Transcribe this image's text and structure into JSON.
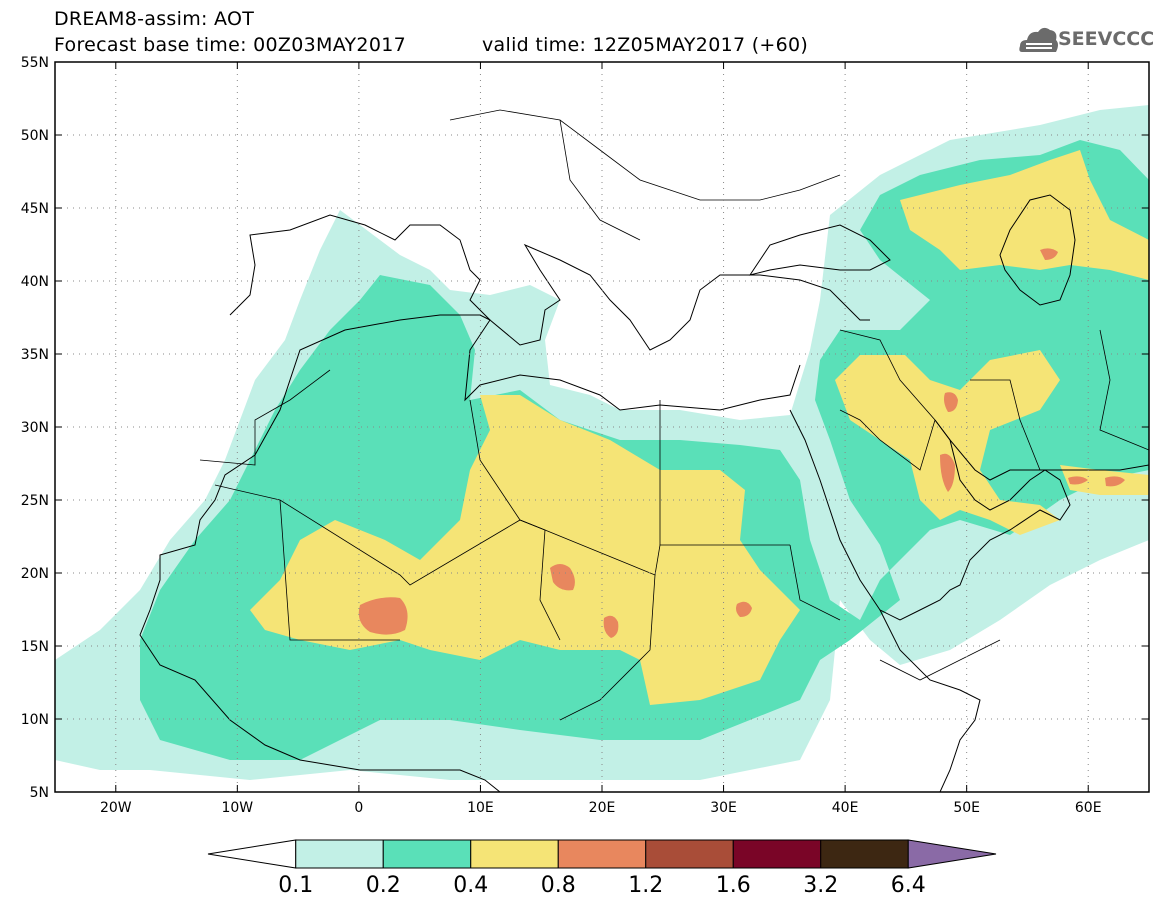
{
  "header": {
    "line1": "DREAM8-assim: AOT",
    "line2": "Forecast base time: 00Z03MAY2017",
    "valid": "valid time: 12Z05MAY2017 (+60)",
    "logo_text": "SEEVCCC"
  },
  "map": {
    "lon_range": [
      -25,
      65
    ],
    "lat_range": [
      5,
      55
    ],
    "lat_labels": [
      "5N",
      "10N",
      "15N",
      "20N",
      "25N",
      "30N",
      "35N",
      "40N",
      "45N",
      "50N",
      "55N"
    ],
    "lat_values": [
      5,
      10,
      15,
      20,
      25,
      30,
      35,
      40,
      45,
      50,
      55
    ],
    "lon_labels": [
      "20W",
      "10W",
      "0",
      "10E",
      "20E",
      "30E",
      "40E",
      "50E",
      "60E"
    ],
    "lon_values": [
      -20,
      -10,
      0,
      10,
      20,
      30,
      40,
      50,
      60
    ],
    "grid": "dotted"
  },
  "colorbar": {
    "labels": [
      "0.1",
      "0.2",
      "0.4",
      "0.8",
      "1.2",
      "1.6",
      "3.2",
      "6.4"
    ],
    "colors": [
      "#ffffff",
      "#c2f0e6",
      "#5ae0b8",
      "#f5e476",
      "#e8875e",
      "#a94d38",
      "#7a0527",
      "#3d2712",
      "#8a6aa6"
    ]
  }
}
